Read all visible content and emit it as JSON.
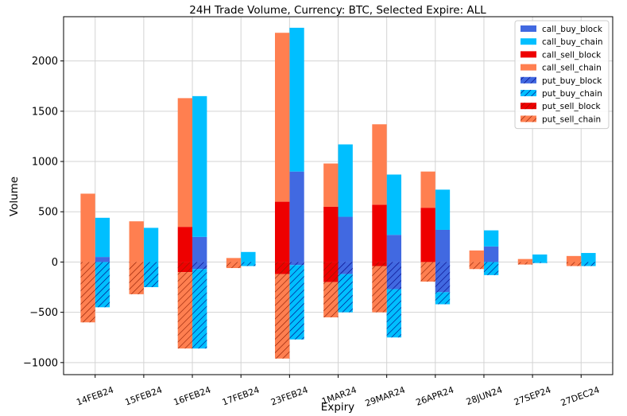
{
  "chart_data": {
    "type": "bar",
    "title": "24H Trade Volume, Currency: BTC, Selected Expire: ALL",
    "xlabel": "Expiry",
    "ylabel": "Volume",
    "ylim": [
      -1120,
      2440
    ],
    "yticks": [
      -1000,
      -500,
      0,
      500,
      1000,
      1500,
      2000
    ],
    "ytick_labels": [
      "−1000",
      "−500",
      "0",
      "500",
      "1000",
      "1500",
      "2000"
    ],
    "grid": true,
    "legend_position": "top-right",
    "categories": [
      "14FEB24",
      "15FEB24",
      "16FEB24",
      "17FEB24",
      "23FEB24",
      "1MAR24",
      "29MAR24",
      "26APR24",
      "28JUN24",
      "27SEP24",
      "27DEC24"
    ],
    "colors": {
      "buy_block": "#4169e1",
      "buy_chain": "#00bfff",
      "sell_block": "#ee0000",
      "sell_chain": "#ff7f50",
      "hatch": "#000080",
      "hatch_light": "#8b1a00"
    },
    "series": [
      {
        "name": "call_buy_block",
        "group": "buy",
        "sign": 1,
        "hatched": false,
        "color_key": "buy_block",
        "values": [
          50,
          0,
          250,
          0,
          900,
          450,
          270,
          320,
          155,
          0,
          0
        ]
      },
      {
        "name": "call_buy_chain",
        "group": "buy",
        "sign": 1,
        "hatched": false,
        "color_key": "buy_chain",
        "values": [
          390,
          340,
          1400,
          100,
          1430,
          720,
          600,
          400,
          160,
          75,
          90
        ]
      },
      {
        "name": "call_sell_block",
        "group": "sell",
        "sign": 1,
        "hatched": false,
        "color_key": "sell_block",
        "values": [
          0,
          0,
          350,
          0,
          600,
          550,
          570,
          540,
          0,
          0,
          0
        ]
      },
      {
        "name": "call_sell_chain",
        "group": "sell",
        "sign": 1,
        "hatched": false,
        "color_key": "sell_chain",
        "values": [
          680,
          405,
          1280,
          40,
          1680,
          430,
          800,
          360,
          115,
          30,
          60
        ]
      },
      {
        "name": "put_buy_block",
        "group": "buy",
        "sign": -1,
        "hatched": true,
        "color_key": "buy_block",
        "values": [
          0,
          0,
          70,
          0,
          30,
          120,
          270,
          300,
          0,
          0,
          0
        ]
      },
      {
        "name": "put_buy_chain",
        "group": "buy",
        "sign": -1,
        "hatched": true,
        "color_key": "buy_chain",
        "values": [
          450,
          250,
          790,
          40,
          740,
          380,
          480,
          120,
          130,
          10,
          40
        ]
      },
      {
        "name": "put_sell_block",
        "group": "sell",
        "sign": -1,
        "hatched": true,
        "color_key": "sell_block",
        "values": [
          0,
          0,
          100,
          0,
          120,
          200,
          40,
          0,
          0,
          0,
          0
        ]
      },
      {
        "name": "put_sell_chain",
        "group": "sell",
        "sign": -1,
        "hatched": true,
        "color_key": "sell_chain",
        "values": [
          600,
          320,
          760,
          60,
          840,
          350,
          460,
          195,
          70,
          25,
          40
        ]
      }
    ]
  }
}
